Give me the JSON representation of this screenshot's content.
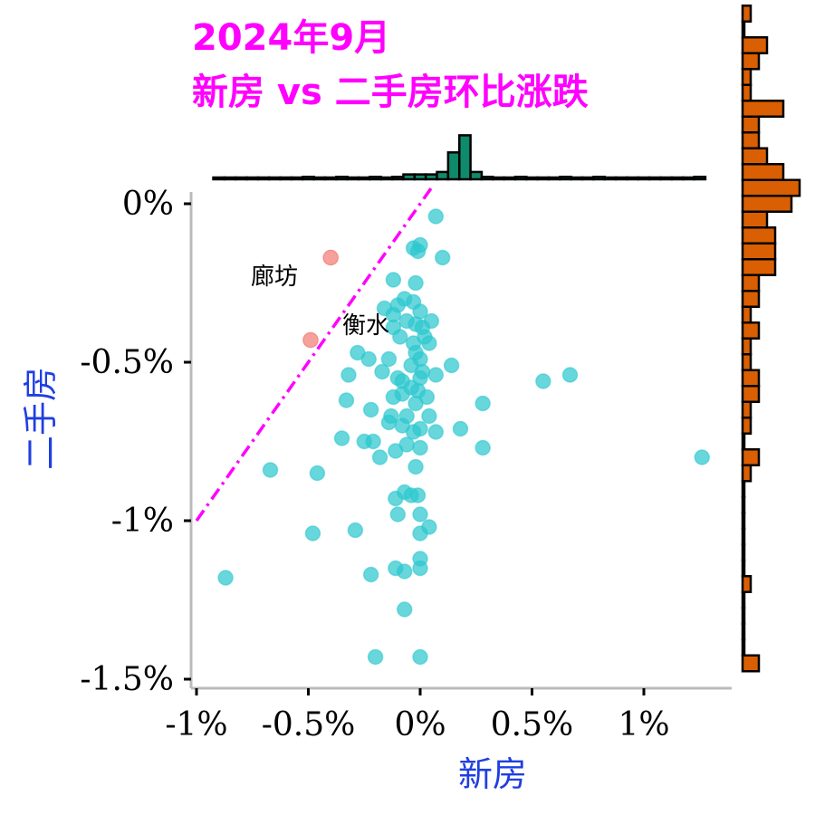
{
  "title_line1": "2024年9月",
  "title_line2": "新房 vs 二手房环比涨跌",
  "colors": {
    "title": "#FF00FF",
    "axis_title": "#1F3FE0",
    "points": "#2CC7CF",
    "highlight_points": "#F4908A",
    "diagonal": "#FF00FF",
    "top_hist": "#0F8A6A",
    "right_hist": "#D95F02",
    "axis_line": "#BBBBBB"
  },
  "chart_data": {
    "type": "scatter",
    "title": "2024年9月 新房 vs 二手房环比涨跌",
    "xlabel": "新房",
    "ylabel": "二手房",
    "xlim": [
      -1.02,
      1.38
    ],
    "ylim": [
      -1.52,
      0.05
    ],
    "x_ticks": [
      {
        "value": -1,
        "label": "-1%"
      },
      {
        "value": -0.5,
        "label": "-0.5%"
      },
      {
        "value": 0,
        "label": "0%"
      },
      {
        "value": 0.5,
        "label": "0.5%"
      },
      {
        "value": 1,
        "label": "1%"
      }
    ],
    "y_ticks": [
      {
        "value": 0,
        "label": "0%"
      },
      {
        "value": -0.5,
        "label": "-0.5%"
      },
      {
        "value": -1,
        "label": "-1%"
      },
      {
        "value": -1.5,
        "label": "-1.5%"
      }
    ],
    "reference_line": {
      "style": "dash-dot",
      "slope": 1,
      "intercept": 0
    },
    "highlighted": [
      {
        "label": "廊坊",
        "x": -0.4,
        "y": -0.17
      },
      {
        "label": "衡水",
        "x": -0.49,
        "y": -0.43
      }
    ],
    "points": [
      [
        0.07,
        -0.04
      ],
      [
        0.1,
        -0.17
      ],
      [
        -0.03,
        -0.14
      ],
      [
        0.0,
        -0.13
      ],
      [
        -0.01,
        -0.15
      ],
      [
        -0.12,
        -0.24
      ],
      [
        -0.02,
        -0.25
      ],
      [
        -0.16,
        -0.33
      ],
      [
        -0.1,
        -0.32
      ],
      [
        -0.07,
        -0.3
      ],
      [
        -0.03,
        -0.31
      ],
      [
        -0.12,
        -0.35
      ],
      [
        0.0,
        -0.34
      ],
      [
        -0.06,
        -0.37
      ],
      [
        -0.02,
        -0.38
      ],
      [
        0.05,
        -0.37
      ],
      [
        0.01,
        -0.39
      ],
      [
        -0.12,
        -0.39
      ],
      [
        0.02,
        -0.42
      ],
      [
        -0.09,
        -0.42
      ],
      [
        -0.03,
        -0.44
      ],
      [
        0.04,
        -0.44
      ],
      [
        -0.28,
        -0.47
      ],
      [
        -0.23,
        -0.49
      ],
      [
        -0.14,
        -0.49
      ],
      [
        -0.02,
        -0.47
      ],
      [
        0.0,
        -0.49
      ],
      [
        -0.04,
        -0.51
      ],
      [
        0.14,
        -0.51
      ],
      [
        0.01,
        -0.53
      ],
      [
        -0.32,
        -0.54
      ],
      [
        -0.17,
        -0.53
      ],
      [
        -0.1,
        -0.55
      ],
      [
        -0.08,
        -0.56
      ],
      [
        0.0,
        -0.55
      ],
      [
        0.07,
        -0.54
      ],
      [
        0.55,
        -0.56
      ],
      [
        0.67,
        -0.54
      ],
      [
        -0.01,
        -0.59
      ],
      [
        -0.08,
        -0.6
      ],
      [
        -0.04,
        -0.58
      ],
      [
        -0.12,
        -0.61
      ],
      [
        -0.33,
        -0.62
      ],
      [
        0.03,
        -0.61
      ],
      [
        -0.02,
        -0.63
      ],
      [
        0.28,
        -0.63
      ],
      [
        -0.22,
        -0.65
      ],
      [
        -0.13,
        -0.67
      ],
      [
        -0.06,
        -0.67
      ],
      [
        0.04,
        -0.67
      ],
      [
        -0.14,
        -0.69
      ],
      [
        -0.08,
        -0.7
      ],
      [
        0.0,
        -0.71
      ],
      [
        -0.03,
        -0.72
      ],
      [
        0.07,
        -0.72
      ],
      [
        0.18,
        -0.71
      ],
      [
        -0.35,
        -0.74
      ],
      [
        -0.25,
        -0.75
      ],
      [
        -0.21,
        -0.75
      ],
      [
        -0.11,
        -0.78
      ],
      [
        -0.06,
        -0.76
      ],
      [
        0.0,
        -0.77
      ],
      [
        0.28,
        -0.77
      ],
      [
        -0.18,
        -0.8
      ],
      [
        1.26,
        -0.8
      ],
      [
        -0.67,
        -0.84
      ],
      [
        -0.46,
        -0.85
      ],
      [
        -0.02,
        -0.83
      ],
      [
        -0.07,
        -0.91
      ],
      [
        -0.04,
        -0.92
      ],
      [
        -0.11,
        -0.93
      ],
      [
        -0.01,
        -0.92
      ],
      [
        0.0,
        -0.98
      ],
      [
        -0.1,
        -0.98
      ],
      [
        0.04,
        -1.02
      ],
      [
        0.0,
        -1.04
      ],
      [
        -0.29,
        -1.03
      ],
      [
        -0.48,
        -1.04
      ],
      [
        0.0,
        -1.12
      ],
      [
        -0.11,
        -1.15
      ],
      [
        -0.07,
        -1.16
      ],
      [
        0.0,
        -1.15
      ],
      [
        -0.22,
        -1.17
      ],
      [
        -0.87,
        -1.18
      ],
      [
        -0.07,
        -1.28
      ],
      [
        -0.2,
        -1.43
      ],
      [
        0.0,
        -1.43
      ]
    ],
    "x_hist": {
      "bin_start": -0.925,
      "bin_width": 0.05,
      "counts": [
        0,
        0,
        0,
        0,
        0,
        0,
        0,
        0,
        1,
        0,
        0,
        1,
        0,
        0,
        1,
        0,
        1,
        2,
        2,
        2,
        3,
        11,
        18,
        3,
        1,
        0,
        0,
        1,
        0,
        0,
        0,
        1,
        0,
        0,
        1,
        0,
        0,
        0,
        0,
        0,
        0,
        0,
        0,
        1
      ]
    },
    "y_hist": {
      "bin_start": -1.475,
      "bin_width": 0.05,
      "counts": [
        2,
        0,
        0,
        0,
        0,
        1,
        0,
        0,
        0,
        0,
        0,
        0,
        1,
        2,
        0,
        1,
        1,
        2,
        2,
        1,
        1,
        2,
        1,
        2,
        2,
        4,
        4,
        4,
        3,
        6,
        7,
        5,
        3,
        2,
        2,
        5,
        1,
        1,
        2,
        3,
        0,
        1
      ]
    }
  }
}
